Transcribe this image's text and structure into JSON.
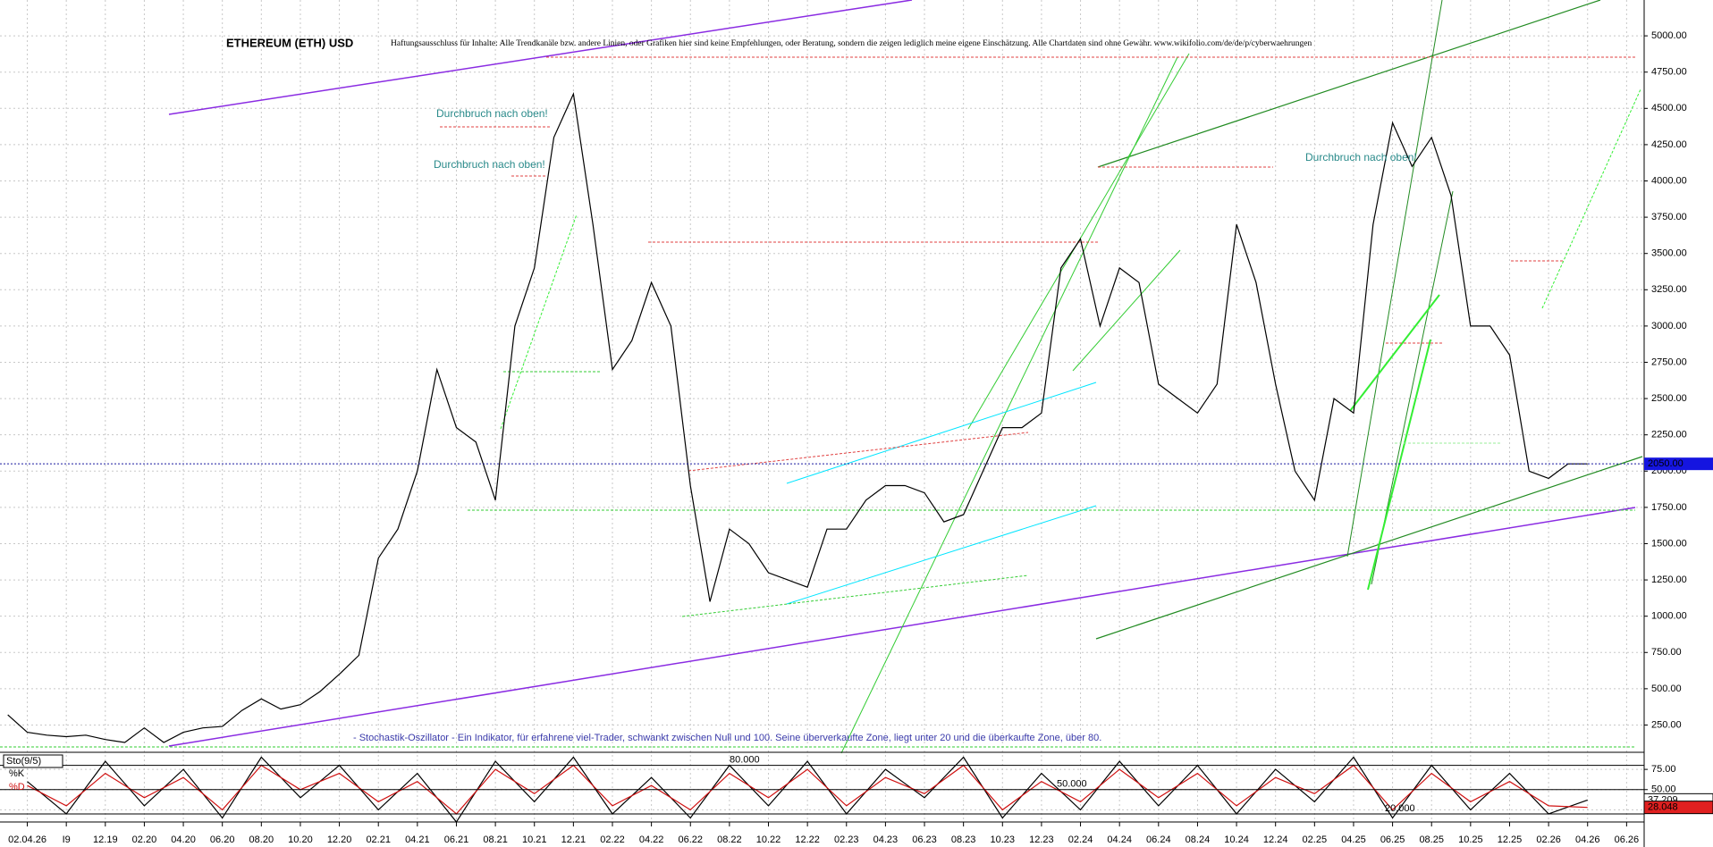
{
  "chart_data": [
    {
      "type": "line",
      "title": "ETHEREUM (ETH) USD",
      "disclaimer": "Haftungsausschluss für Inhalte: Alle Trendkanäle bzw. andere Linien, oder Grafiken hier sind keine Empfehlungen, oder Beratung, sondern die zeigen lediglich meine eigene Einschätzung. Alle Chartdaten sind ohne Gewähr.  www.wikifolio.com/de/de/p/cyberwaehrungen",
      "annotations": [
        "Durchbruch nach oben!",
        "Durchbruch nach oben!",
        "Durchbruch nach oben!",
        "- Stochastik-Oszillator - Ein Indikator, für erfahrene viel-Trader, schwankt zwischen Null und 100. Seine überverkaufte Zone, liegt unter 20 und die überkaufte Zone, über 80."
      ],
      "x": [
        6,
        7,
        8,
        9,
        10,
        11,
        12,
        13,
        14,
        15,
        16,
        17,
        18,
        19,
        20,
        21,
        22,
        23,
        24,
        25,
        26,
        27,
        28,
        29,
        30,
        31,
        32,
        33,
        34,
        35,
        36,
        37,
        38,
        39,
        40,
        41,
        42,
        43,
        44,
        45,
        46,
        47,
        48,
        49,
        50,
        51,
        52,
        53,
        54,
        55,
        56,
        57,
        58,
        59,
        60,
        61,
        62,
        63,
        64,
        65,
        66,
        67,
        68,
        69,
        70,
        71,
        72,
        73,
        74,
        75,
        76,
        77,
        78,
        79,
        80,
        81,
        82,
        83,
        84,
        85,
        86,
        87
      ],
      "series": [
        {
          "name": "ETH",
          "color": "#000000",
          "values": [
            320,
            200,
            180,
            170,
            180,
            150,
            130,
            230,
            130,
            200,
            230,
            240,
            350,
            430,
            360,
            390,
            480,
            600,
            730,
            1400,
            1600,
            2000,
            2700,
            2300,
            2200,
            1800,
            3000,
            3400,
            4300,
            4600,
            3700,
            2700,
            2900,
            3300,
            3000,
            1900,
            1100,
            1600,
            1500,
            1300,
            1250,
            1200,
            1600,
            1600,
            1800,
            1900,
            1900,
            1850,
            1650,
            1700,
            2000,
            2300,
            2300,
            2400,
            3400,
            3600,
            3000,
            3400,
            3300,
            2600,
            2500,
            2400,
            2600,
            3700,
            3300,
            2600,
            2000,
            1800,
            2500,
            2400,
            3700,
            4400,
            4100,
            4300,
            3900,
            3000,
            3000,
            2800,
            2000,
            1950,
            2050,
            2050
          ]
        }
      ],
      "last_price": {
        "value": 2050,
        "label": "2050.00"
      },
      "xlim": [
        5.6,
        89.9
      ],
      "xticks": [
        {
          "value": 7,
          "label": "02.04.26"
        },
        {
          "value": 9,
          "label": "I9"
        },
        {
          "value": 11,
          "label": "12.19"
        },
        {
          "value": 13,
          "label": "02.20"
        },
        {
          "value": 15,
          "label": "04.20"
        },
        {
          "value": 17,
          "label": "06.20"
        },
        {
          "value": 19,
          "label": "08.20"
        },
        {
          "value": 21,
          "label": "10.20"
        },
        {
          "value": 23,
          "label": "12.20"
        },
        {
          "value": 25,
          "label": "02.21"
        },
        {
          "value": 27,
          "label": "04.21"
        },
        {
          "value": 29,
          "label": "06.21"
        },
        {
          "value": 31,
          "label": "08.21"
        },
        {
          "value": 33,
          "label": "10.21"
        },
        {
          "value": 35,
          "label": "12.21"
        },
        {
          "value": 37,
          "label": "02.22"
        },
        {
          "value": 39,
          "label": "04.22"
        },
        {
          "value": 41,
          "label": "06.22"
        },
        {
          "value": 43,
          "label": "08.22"
        },
        {
          "value": 45,
          "label": "10.22"
        },
        {
          "value": 47,
          "label": "12.22"
        },
        {
          "value": 49,
          "label": "02.23"
        },
        {
          "value": 51,
          "label": "04.23"
        },
        {
          "value": 53,
          "label": "06.23"
        },
        {
          "value": 55,
          "label": "08.23"
        },
        {
          "value": 57,
          "label": "10.23"
        },
        {
          "value": 59,
          "label": "12.23"
        },
        {
          "value": 61,
          "label": "02.24"
        },
        {
          "value": 63,
          "label": "04.24"
        },
        {
          "value": 65,
          "label": "06.24"
        },
        {
          "value": 67,
          "label": "08.24"
        },
        {
          "value": 69,
          "label": "10.24"
        },
        {
          "value": 71,
          "label": "12.24"
        },
        {
          "value": 73,
          "label": "02.25"
        },
        {
          "value": 75,
          "label": "04.25"
        },
        {
          "value": 77,
          "label": "06.25"
        },
        {
          "value": 79,
          "label": "08.25"
        },
        {
          "value": 81,
          "label": "10.25"
        },
        {
          "value": 83,
          "label": "12.25"
        },
        {
          "value": 85,
          "label": "02.26"
        },
        {
          "value": 87,
          "label": "04.26"
        },
        {
          "value": 89,
          "label": "06.26"
        }
      ],
      "ylim": [
        62,
        5247
      ],
      "yticks": [
        {
          "value": 250,
          "label": "250.00"
        },
        {
          "value": 500,
          "label": "500.00"
        },
        {
          "value": 750,
          "label": "750.00"
        },
        {
          "value": 1000,
          "label": "1000.00"
        },
        {
          "value": 1250,
          "label": "1250.00"
        },
        {
          "value": 1500,
          "label": "1500.00"
        },
        {
          "value": 1750,
          "label": "1750.00"
        },
        {
          "value": 2000,
          "label": "2000.00"
        },
        {
          "value": 2250,
          "label": "2250.00"
        },
        {
          "value": 2500,
          "label": "2500.00"
        },
        {
          "value": 2750,
          "label": "2750.00"
        },
        {
          "value": 3000,
          "label": "3000.00"
        },
        {
          "value": 3250,
          "label": "3250.00"
        },
        {
          "value": 3500,
          "label": "3500.00"
        },
        {
          "value": 3750,
          "label": "3750.00"
        },
        {
          "value": 4000,
          "label": "4000.00"
        },
        {
          "value": 4250,
          "label": "4250.00"
        },
        {
          "value": 4500,
          "label": "4500.00"
        },
        {
          "value": 4750,
          "label": "4750.00"
        },
        {
          "value": 5000,
          "label": "5000.00"
        }
      ],
      "grid": true
    },
    {
      "type": "line",
      "title": "Sto(9/5)",
      "x": [
        7,
        9,
        11,
        13,
        15,
        17,
        19,
        21,
        23,
        25,
        27,
        29,
        31,
        33,
        35,
        37,
        39,
        41,
        43,
        45,
        47,
        49,
        51,
        53,
        55,
        57,
        59,
        61,
        63,
        65,
        67,
        69,
        71,
        73,
        75,
        77,
        79,
        81,
        83,
        85,
        87
      ],
      "series": [
        {
          "name": "%K",
          "color": "#000000",
          "values": [
            60,
            20,
            85,
            30,
            75,
            15,
            90,
            40,
            80,
            25,
            70,
            10,
            85,
            35,
            90,
            20,
            65,
            15,
            80,
            30,
            85,
            20,
            75,
            40,
            90,
            15,
            70,
            25,
            85,
            30,
            80,
            20,
            75,
            35,
            90,
            15,
            80,
            25,
            70,
            20,
            37.209
          ]
        },
        {
          "name": "%D",
          "color": "#d01010",
          "values": [
            55,
            30,
            70,
            40,
            65,
            25,
            80,
            50,
            70,
            35,
            60,
            20,
            75,
            45,
            80,
            30,
            55,
            25,
            70,
            40,
            75,
            30,
            65,
            45,
            80,
            25,
            60,
            35,
            75,
            40,
            70,
            30,
            65,
            45,
            80,
            25,
            70,
            35,
            60,
            30,
            28.048
          ]
        }
      ],
      "last_labels": [
        "37.209",
        "28.048"
      ],
      "levels": [
        {
          "value": 80,
          "label": "80.000"
        },
        {
          "value": 50,
          "label": "50.000"
        },
        {
          "value": 20,
          "label": "20.000"
        }
      ],
      "xlim": [
        5.6,
        89.9
      ],
      "ylim": [
        10,
        95
      ],
      "yticks": [
        {
          "value": 25,
          "label": "25.00"
        },
        {
          "value": 50,
          "label": "50.00"
        },
        {
          "value": 75,
          "label": "75.00"
        }
      ],
      "grid": true
    }
  ]
}
